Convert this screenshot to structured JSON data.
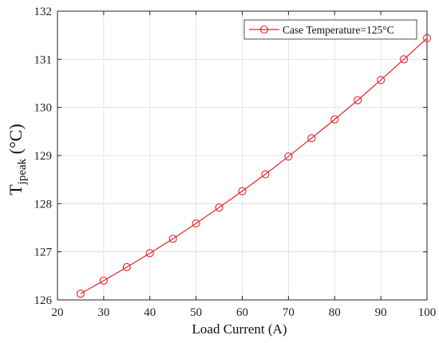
{
  "chart_data": {
    "type": "line",
    "xlabel": "Load Current (A)",
    "ylabel": {
      "main": "T",
      "sub": "jpeak",
      "unit": " (°C)"
    },
    "xlim": [
      20,
      100
    ],
    "ylim": [
      126,
      132
    ],
    "xticks": [
      20,
      30,
      40,
      50,
      60,
      70,
      80,
      90,
      100
    ],
    "yticks": [
      126,
      127,
      128,
      129,
      130,
      131,
      132
    ],
    "grid": true,
    "legend_position": "top-right",
    "marker": "circle",
    "series": [
      {
        "name": "Case Temperature=125°C",
        "color": "#e8212b",
        "x": [
          25,
          30,
          35,
          40,
          45,
          50,
          55,
          60,
          65,
          70,
          75,
          80,
          85,
          90,
          95,
          100
        ],
        "y": [
          126.13,
          126.4,
          126.68,
          126.97,
          127.27,
          127.59,
          127.92,
          128.26,
          128.61,
          128.98,
          129.36,
          129.75,
          130.15,
          130.57,
          131.0,
          131.44
        ]
      }
    ]
  }
}
